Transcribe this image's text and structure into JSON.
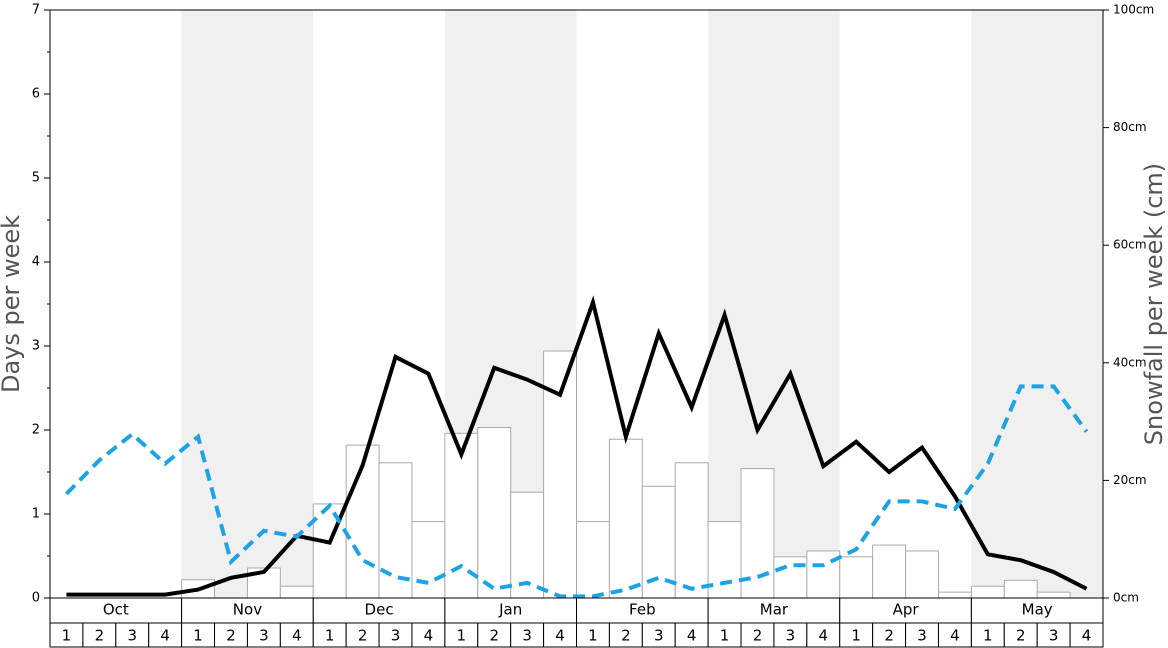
{
  "chart_data": {
    "type": "bar",
    "y_label": "Days per week",
    "y2_label": "Snowfall per week (cm)",
    "months": [
      "Oct",
      "Nov",
      "Dec",
      "Jan",
      "Feb",
      "Mar",
      "Apr",
      "May"
    ],
    "categories": [
      "1",
      "2",
      "3",
      "4",
      "1",
      "2",
      "3",
      "4",
      "1",
      "2",
      "3",
      "4",
      "1",
      "2",
      "3",
      "4",
      "1",
      "2",
      "3",
      "4",
      "1",
      "2",
      "3",
      "4",
      "1",
      "2",
      "3",
      "4",
      "1",
      "2",
      "3",
      "4"
    ],
    "ylim": [
      0,
      7
    ],
    "yticks": [
      0,
      1,
      2,
      3,
      4,
      5,
      6,
      7
    ],
    "yminor": [
      0.5,
      1.5,
      2.5,
      3.5,
      4.5,
      5.5,
      6.5
    ],
    "y2lim": [
      0,
      100
    ],
    "y2ticks": [
      {
        "value": 0,
        "label": "0cm"
      },
      {
        "value": 20,
        "label": "20cm"
      },
      {
        "value": 40,
        "label": "40cm"
      },
      {
        "value": 60,
        "label": "60cm"
      },
      {
        "value": 80,
        "label": "80cm"
      },
      {
        "value": 100,
        "label": "100cm"
      }
    ],
    "series": [
      {
        "type": "bar",
        "axis": "y2",
        "color": "#ffffff",
        "values": [
          0,
          0,
          0,
          0,
          3.1,
          0,
          5.1,
          2.0,
          16,
          26,
          23,
          13,
          28,
          29,
          18,
          42,
          13,
          27,
          19,
          23,
          13,
          22,
          7,
          8,
          7,
          9,
          8,
          1,
          2,
          3,
          1,
          0
        ]
      },
      {
        "type": "line",
        "color": "#000000",
        "values": [
          0.04,
          0.04,
          0.04,
          0.04,
          0.1,
          0.24,
          0.31,
          0.74,
          0.66,
          1.58,
          2.87,
          2.67,
          1.71,
          2.74,
          2.6,
          2.42,
          3.52,
          1.92,
          3.15,
          2.27,
          3.37,
          2.0,
          2.67,
          1.57,
          1.86,
          1.5,
          1.79,
          1.21,
          0.52,
          0.45,
          0.31,
          0.11
        ]
      },
      {
        "type": "line",
        "color": "#1ca3e6",
        "dashed": true,
        "values": [
          1.24,
          1.64,
          1.95,
          1.6,
          1.92,
          0.43,
          0.8,
          0.73,
          1.1,
          0.45,
          0.25,
          0.18,
          0.38,
          0.11,
          0.18,
          0.02,
          0.02,
          0.1,
          0.24,
          0.11,
          0.18,
          0.25,
          0.39,
          0.39,
          0.58,
          1.15,
          1.15,
          1.06,
          1.6,
          2.52,
          2.52,
          1.98
        ]
      }
    ]
  }
}
